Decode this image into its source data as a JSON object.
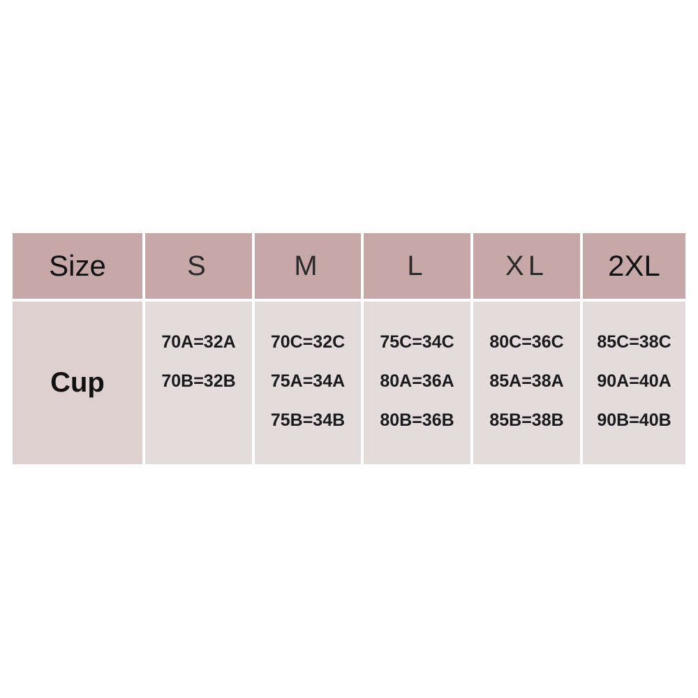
{
  "table": {
    "header": [
      "Size",
      "S",
      "M",
      "L",
      "XL",
      "2XL"
    ],
    "rows": [
      [
        "Cup",
        [
          "70A=32A",
          "70B=32B"
        ],
        [
          "70C=32C",
          "75A=34A",
          "75B=34B"
        ],
        [
          "75C=34C",
          "80A=36A",
          "80B=36B"
        ],
        [
          "80C=36C",
          "85A=38A",
          "85B=38B"
        ],
        [
          "85C=38C",
          "90A=40A",
          "90B=40B"
        ]
      ]
    ]
  }
}
